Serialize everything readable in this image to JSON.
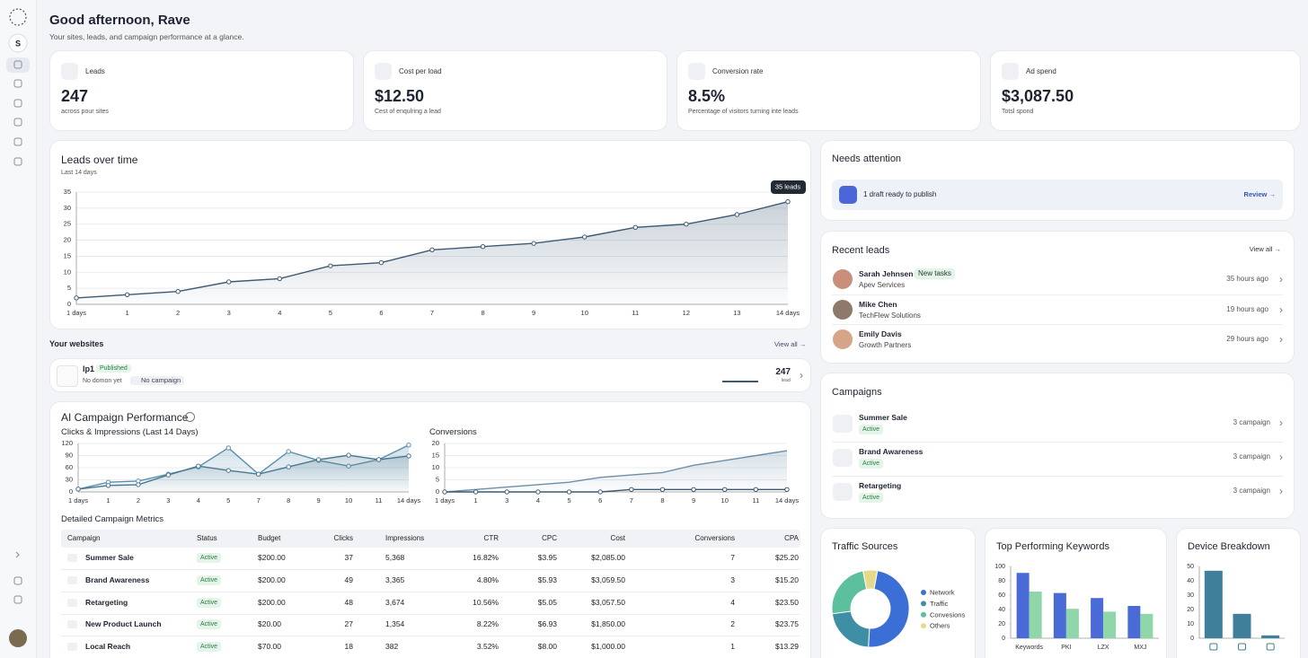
{
  "sidebar": {
    "avatar": "S"
  },
  "header": {
    "title": "Good afternoon, Rave",
    "subtitle": "Your sites, leads, and campaign performance at a glance."
  },
  "stats": [
    {
      "label": "Leads",
      "value": 247,
      "note": "across pour sites"
    },
    {
      "label": "Cost per load",
      "value": "$12.50",
      "note": "Cest of enqulring a lead"
    },
    {
      "label": "Conversion rate",
      "value": "8.5%",
      "note": "Percentage of visitors turning inte leads"
    },
    {
      "label": "Ad spend",
      "value": "$3,087.50",
      "note": "Totsl spond"
    }
  ],
  "chart_data": [
    {
      "type": "line",
      "title": "Leads over time",
      "subtitle": "Last 14 days",
      "annotation": "35 leads",
      "categories": [
        "1 days",
        "1",
        "2",
        "3",
        "4",
        "5",
        "6",
        "7",
        "8",
        "9",
        "10",
        "11",
        "12",
        "13",
        "14 days"
      ],
      "values": [
        2,
        3,
        4,
        7,
        8,
        12,
        13,
        17,
        18,
        19,
        21,
        24,
        25,
        28,
        32
      ],
      "color": "#3d5a73",
      "area": true,
      "markers": true,
      "ylim": [
        0,
        35
      ],
      "yticks": [
        0,
        5,
        10,
        15,
        20,
        25,
        30,
        35
      ],
      "grid": true
    },
    {
      "type": "line",
      "title": "Clicks & Impressions (Last 14 Days)",
      "categories": [
        "1 days",
        "1",
        "2",
        "3",
        "4",
        "5",
        "7",
        "8",
        "9",
        "10",
        "11",
        "14 days"
      ],
      "series": [
        {
          "color": "#5a8fac",
          "area": true,
          "markers": true,
          "values": [
            7,
            24,
            27,
            44,
            62,
            109,
            44,
            100,
            78,
            64,
            80,
            116
          ]
        },
        {
          "color": "#4a7890",
          "area": true,
          "markers": true,
          "values": [
            7,
            16,
            18,
            42,
            64,
            53,
            44,
            62,
            80,
            91,
            80,
            89
          ]
        }
      ],
      "ylim": [
        0,
        120
      ],
      "yticks": [
        0,
        30,
        60,
        90,
        120
      ],
      "grid": true
    },
    {
      "type": "line",
      "title": "Conversions",
      "categories": [
        "1 days",
        "1",
        "3",
        "4",
        "5",
        "6",
        "7",
        "8",
        "9",
        "10",
        "11",
        "14 days"
      ],
      "series": [
        {
          "color": "#6c8ea6",
          "area": true,
          "markers": false,
          "values": [
            0,
            1,
            2,
            3,
            4,
            6,
            7,
            8,
            11,
            13,
            15,
            17
          ]
        },
        {
          "color": "#3d5a73",
          "area": false,
          "markers": true,
          "values": [
            0,
            0,
            0,
            0,
            0,
            0,
            1,
            1,
            1,
            1,
            1,
            1
          ]
        }
      ],
      "ylim": [
        0,
        20
      ],
      "yticks": [
        0,
        5,
        10,
        15,
        20
      ],
      "grid": true
    },
    {
      "type": "pie",
      "title": "Traffic Sources",
      "series": [
        {
          "name": "Network",
          "color": "#3b6fd6",
          "values": [
            48
          ]
        },
        {
          "name": "Traffic",
          "color": "#3e8fa6",
          "values": [
            22
          ]
        },
        {
          "name": "Convesions",
          "color": "#5cbf9e",
          "values": [
            24
          ]
        },
        {
          "name": "Others",
          "color": "#e6d98a",
          "values": [
            6
          ]
        }
      ]
    },
    {
      "type": "bar",
      "title": "Top Performing Keywords",
      "categories": [
        "Keywords",
        "PKI",
        "LZX",
        "MXJ"
      ],
      "series": [
        {
          "color": "#4a6ad8",
          "values": [
            91,
            63,
            56,
            45
          ]
        },
        {
          "color": "#8fd6a8",
          "values": [
            65,
            41,
            37,
            34
          ]
        }
      ],
      "ylim": [
        0,
        100
      ],
      "yticks": [
        0,
        20,
        40,
        60,
        80,
        100
      ]
    },
    {
      "type": "bar",
      "title": "Device Breakdown",
      "categories": [
        null,
        null,
        null
      ],
      "series": [
        {
          "color": "#3f7f99",
          "values": [
            47,
            17,
            2
          ]
        }
      ],
      "ylim": [
        0,
        50
      ],
      "yticks": [
        0,
        10,
        20,
        30,
        40,
        50
      ]
    }
  ],
  "websites": {
    "title": "Your websites",
    "view_all": "View all",
    "items": [
      {
        "name": "lp1",
        "status": "Published",
        "domain": "No domon yet",
        "campaign": "No campaign",
        "leads": 247,
        "leads_label": "lead"
      }
    ]
  },
  "campaign_performance": {
    "title": "AI Campaign Performance",
    "table_title": "Detailed Campaign Metrics",
    "columns": [
      "Campaign",
      "Status",
      "Budget",
      "Clicks",
      "Impressions",
      "CTR",
      "CPC",
      "Cost",
      "Conversions",
      "CPA"
    ],
    "rows": [
      [
        "Summer Sale",
        "Active",
        "$200.00",
        37,
        "5,368",
        "16.82%",
        "$3.95",
        "$2,085.00",
        7,
        "$25.20"
      ],
      [
        "Brand Awareness",
        "Active",
        "$200.00",
        49,
        "3,365",
        "4.80%",
        "$5.93",
        "$3,059.50",
        3,
        "$15.20"
      ],
      [
        "Retargeting",
        "Active",
        "$200.00",
        48,
        "3,674",
        "10.56%",
        "$5.05",
        "$3,057.50",
        4,
        "$23.50"
      ],
      [
        "New Product Launch",
        "Active",
        "$20.00",
        27,
        "1,354",
        "8.22%",
        "$6.93",
        "$1,850.00",
        2,
        "$23.75"
      ],
      [
        "Local Reach",
        "Active",
        "$70.00",
        18,
        "382",
        "3.52%",
        "$8.00",
        "$1,000.00",
        1,
        "$13.29"
      ]
    ]
  },
  "needs_attention": {
    "title": "Needs attention",
    "message": "1 draft ready to publish",
    "action": "Review"
  },
  "recent_leads": {
    "title": "Recent leads",
    "view_all": "View all",
    "items": [
      {
        "name": "Sarah Jehnsen",
        "tag": "New tasks",
        "company": "Apev Services",
        "time": "35 hours ago"
      },
      {
        "name": "Mike Chen",
        "company": "TechFlew Solutions",
        "time": "19 hours ago"
      },
      {
        "name": "Emily Davis",
        "company": "Growth Partners",
        "time": "29 hours ago"
      }
    ]
  },
  "campaigns": {
    "title": "Campaigns",
    "items": [
      {
        "name": "Summer Sale",
        "status": "Active",
        "count": "3 campaign"
      },
      {
        "name": "Brand Awareness",
        "status": "Active",
        "count": "3 campaign"
      },
      {
        "name": "Retargeting",
        "status": "Active",
        "count": "3 campaign"
      }
    ]
  }
}
